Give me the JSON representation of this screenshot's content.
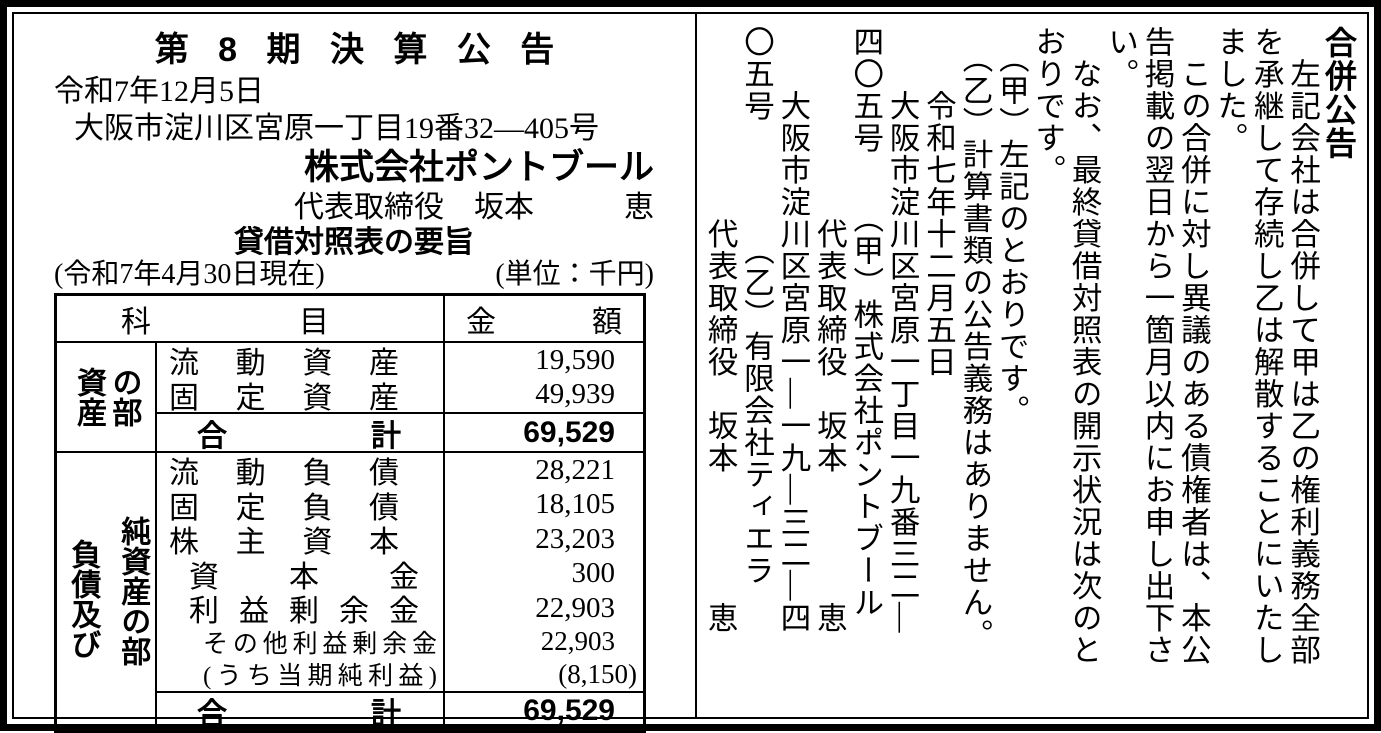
{
  "left": {
    "title": "第 8 期 決 算 公 告",
    "date_line": "令和7年12月5日",
    "address_line": "大阪市淀川区宮原一丁目19番32—405号",
    "company_name": "株式会社ポントブール",
    "representative_line": "代表取締役　坂本　　　恵",
    "bs_title": "貸借対照表の要旨",
    "bs_asof": "(令和7年4月30日現在)",
    "bs_unit": "(単位：千円)",
    "table": {
      "header": {
        "subject": [
          "科",
          "目"
        ],
        "amount": [
          "金",
          "額"
        ]
      },
      "sections": [
        {
          "group": [
            "資産",
            "の部"
          ],
          "rows": [
            {
              "name": "流動資産",
              "amount": "19,590"
            },
            {
              "name": "固定資産",
              "amount": "49,939"
            }
          ],
          "total": {
            "name": "合計",
            "amount": "69,529"
          }
        },
        {
          "group": [
            "負債及び",
            "純資産の部"
          ],
          "rows": [
            {
              "name": "流動負債",
              "amount": "28,221"
            },
            {
              "name": "固定負債",
              "amount": "18,105"
            },
            {
              "name": "株主資本",
              "amount": "23,203"
            },
            {
              "name": "資本金",
              "amount": "300"
            },
            {
              "name": "利益剰余金",
              "amount": "22,903"
            },
            {
              "name": "その他利益剰余金",
              "amount": "22,903"
            },
            {
              "name": "(うち当期純利益)",
              "amount": "(8,150)"
            }
          ],
          "total": {
            "name": "合計",
            "amount": "69,529"
          }
        }
      ]
    }
  },
  "right": {
    "columns": [
      "合併公告",
      "　左記会社は合併して甲は乙の権利義務全部",
      "を承継して存続し乙は解散することにいたし",
      "ました。",
      "　この合併に対し異議のある債権者は、本公",
      "告掲載の翌日から一箇月以内にお申し出下さ",
      "い。",
      "　なお、最終貸借対照表の開示状況は次のと",
      "おりです。",
      "　（甲）左記のとおりです。",
      "　（乙）計算書類の公告義務はありません。",
      "　　令和七年十二月五日",
      "　　大阪市淀川区宮原一丁目一九番三二—",
      "四〇五号　　（甲）株式会社ポントブール",
      "　　　　　　代表取締役　坂本　　　　恵",
      "　　大阪市淀川区宮原一—一九—三二—四",
      "〇五号　　　　（乙）有限会社ティエラ",
      "　　　　　　代表取締役　坂本　　　　恵"
    ]
  }
}
